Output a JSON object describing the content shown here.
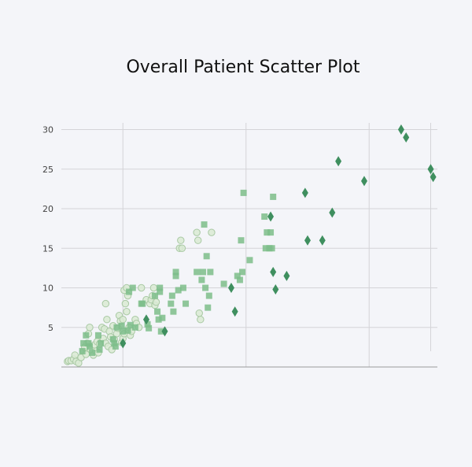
{
  "chart_data": {
    "type": "scatter",
    "title": "Overall Patient Scatter Plot",
    "xlabel": "",
    "ylabel": "",
    "xlim": [
      0,
      30
    ],
    "ylim": [
      0,
      31
    ],
    "x_gridlines": [
      5,
      15,
      25,
      30
    ],
    "y_ticks": [
      5,
      10,
      15,
      20,
      25,
      30
    ],
    "y_tick_labels": [
      "5",
      "10",
      "15",
      "20",
      "25",
      "30"
    ],
    "grid": true,
    "colors": {
      "circle": "#d9ead3",
      "square": "#7dbd8a",
      "diamond": "#3f8f5f"
    },
    "series": [
      {
        "marker": "circle",
        "points": [
          [
            0.5,
            0.7
          ],
          [
            0.6,
            0.8
          ],
          [
            0.8,
            0.8
          ],
          [
            1.0,
            1.0
          ],
          [
            1.1,
            1.5
          ],
          [
            1.2,
            0.7
          ],
          [
            1.4,
            0.5
          ],
          [
            1.6,
            1.2
          ],
          [
            1.8,
            2.0
          ],
          [
            1.9,
            2.5
          ],
          [
            2.0,
            1.6
          ],
          [
            2.1,
            3.0
          ],
          [
            2.2,
            4.2
          ],
          [
            2.3,
            5.0
          ],
          [
            2.4,
            2.2
          ],
          [
            2.6,
            1.5
          ],
          [
            2.7,
            2.8
          ],
          [
            2.8,
            2.0
          ],
          [
            2.9,
            3.2
          ],
          [
            3.0,
            1.8
          ],
          [
            3.1,
            2.9
          ],
          [
            3.3,
            5.0
          ],
          [
            3.4,
            3.6
          ],
          [
            3.5,
            4.8
          ],
          [
            3.6,
            3.0
          ],
          [
            3.6,
            8.0
          ],
          [
            3.7,
            6.0
          ],
          [
            3.8,
            2.6
          ],
          [
            3.9,
            4.5
          ],
          [
            4.0,
            3.8
          ],
          [
            4.1,
            2.2
          ],
          [
            4.2,
            5.2
          ],
          [
            4.3,
            3.5
          ],
          [
            4.5,
            4.2
          ],
          [
            4.6,
            4.9
          ],
          [
            4.7,
            6.5
          ],
          [
            4.8,
            5.8
          ],
          [
            4.9,
            3.1
          ],
          [
            5.0,
            3.6
          ],
          [
            5.0,
            6.0
          ],
          [
            5.1,
            4.2
          ],
          [
            5.1,
            9.7
          ],
          [
            5.2,
            8.0
          ],
          [
            5.3,
            10.0
          ],
          [
            5.3,
            7.0
          ],
          [
            5.4,
            9.0
          ],
          [
            5.5,
            5.0
          ],
          [
            5.6,
            4.0
          ],
          [
            5.7,
            4.5
          ],
          [
            6.0,
            6.0
          ],
          [
            6.1,
            5.5
          ],
          [
            6.3,
            5.0
          ],
          [
            6.5,
            10.0
          ],
          [
            6.9,
            8.5
          ],
          [
            7.2,
            8.0
          ],
          [
            7.3,
            8.5
          ],
          [
            7.4,
            9.0
          ],
          [
            7.5,
            10.0
          ],
          [
            7.6,
            7.8
          ],
          [
            7.7,
            8.2
          ],
          [
            9.6,
            15.0
          ],
          [
            9.7,
            16.0
          ],
          [
            9.8,
            15.0
          ],
          [
            11.0,
            17.0
          ],
          [
            11.1,
            16.0
          ],
          [
            11.3,
            6.0
          ],
          [
            12.2,
            17.0
          ],
          [
            11.2,
            6.8
          ]
        ]
      },
      {
        "marker": "square",
        "points": [
          [
            1.7,
            2.0
          ],
          [
            1.8,
            3.0
          ],
          [
            2.0,
            4.0
          ],
          [
            2.2,
            3.0
          ],
          [
            2.3,
            2.6
          ],
          [
            2.5,
            1.8
          ],
          [
            3.0,
            4.0
          ],
          [
            3.1,
            2.2
          ],
          [
            3.2,
            3.0
          ],
          [
            4.2,
            3.5
          ],
          [
            4.3,
            3.0
          ],
          [
            4.4,
            2.6
          ],
          [
            4.5,
            5.0
          ],
          [
            4.9,
            5.2
          ],
          [
            5.0,
            4.5
          ],
          [
            5.4,
            4.6
          ],
          [
            5.6,
            5.3
          ],
          [
            5.8,
            10.0
          ],
          [
            6.0,
            5.0
          ],
          [
            6.5,
            8.0
          ],
          [
            6.6,
            8.0
          ],
          [
            7.0,
            5.4
          ],
          [
            7.1,
            4.9
          ],
          [
            7.6,
            9.0
          ],
          [
            7.8,
            7.0
          ],
          [
            7.9,
            6.0
          ],
          [
            8.0,
            10.0
          ],
          [
            8.1,
            4.5
          ],
          [
            8.2,
            6.2
          ],
          [
            8.9,
            8.0
          ],
          [
            9.0,
            9.0
          ],
          [
            9.1,
            7.0
          ],
          [
            9.3,
            12.0
          ],
          [
            9.3,
            11.5
          ],
          [
            9.5,
            9.7
          ],
          [
            9.9,
            10.0
          ],
          [
            10.1,
            8.0
          ],
          [
            11.4,
            11.0
          ],
          [
            11.5,
            12.0
          ],
          [
            11.6,
            18.0
          ],
          [
            11.7,
            10.0
          ],
          [
            11.8,
            14.0
          ],
          [
            11.9,
            7.5
          ],
          [
            12.0,
            9.0
          ],
          [
            12.1,
            12.0
          ],
          [
            13.2,
            10.5
          ],
          [
            14.3,
            11.5
          ],
          [
            14.5,
            11.0
          ],
          [
            14.6,
            16.0
          ],
          [
            14.7,
            12.0
          ],
          [
            14.8,
            22.0
          ],
          [
            15.3,
            13.5
          ],
          [
            16.5,
            19.0
          ],
          [
            16.6,
            15.0
          ],
          [
            16.7,
            17.0
          ],
          [
            16.9,
            15.0
          ],
          [
            17.0,
            17.0
          ],
          [
            17.1,
            15.0
          ],
          [
            17.2,
            21.5
          ],
          [
            11.0,
            12.0
          ],
          [
            5.5,
            9.5
          ],
          [
            8.0,
            9.5
          ]
        ]
      },
      {
        "marker": "diamond",
        "points": [
          [
            5.0,
            3.0
          ],
          [
            6.9,
            6.0
          ],
          [
            8.4,
            4.5
          ],
          [
            13.8,
            10.0
          ],
          [
            14.1,
            7.0
          ],
          [
            17.0,
            19.0
          ],
          [
            17.2,
            12.0
          ],
          [
            17.4,
            9.8
          ],
          [
            18.3,
            11.5
          ],
          [
            19.8,
            22.0
          ],
          [
            20.0,
            16.0
          ],
          [
            21.2,
            16.0
          ],
          [
            22.0,
            19.5
          ],
          [
            22.5,
            26.0
          ],
          [
            24.6,
            23.5
          ],
          [
            27.6,
            30.0
          ],
          [
            28.0,
            29.0
          ],
          [
            30.0,
            25.0
          ],
          [
            30.2,
            24.0
          ]
        ]
      }
    ]
  }
}
